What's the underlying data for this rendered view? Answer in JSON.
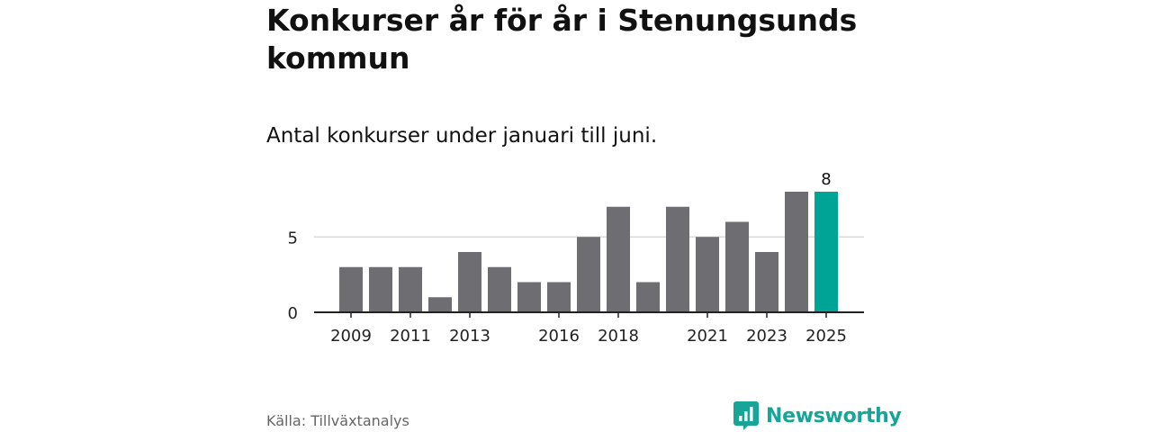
{
  "title": "Konkurser år för år i Stenungsunds kommun",
  "subtitle": "Antal konkurser under januari till juni.",
  "source": "Källa: Tillväxtanalys",
  "brand": "Newsworthy",
  "colors": {
    "bar": "#6e6d72",
    "highlight": "#00a497",
    "brand": "#16a598",
    "grid": "#d9d9d9",
    "axis": "#222222"
  },
  "chart_data": {
    "type": "bar",
    "categories": [
      "2009",
      "2010",
      "2011",
      "2012",
      "2013",
      "2014",
      "2015",
      "2016",
      "2017",
      "2018",
      "2019",
      "2020",
      "2021",
      "2022",
      "2023",
      "2024",
      "2025"
    ],
    "values": [
      3,
      3,
      3,
      1,
      4,
      3,
      2,
      2,
      5,
      7,
      2,
      7,
      5,
      6,
      4,
      8,
      8
    ],
    "x_tick_labels": [
      "2009",
      "2011",
      "2013",
      "2016",
      "2018",
      "2021",
      "2023",
      "2025"
    ],
    "y_ticks": [
      0,
      5
    ],
    "ylim": [
      0,
      8
    ],
    "highlight_category": "2025",
    "data_labels": [
      {
        "category": "2025",
        "value": "8"
      }
    ],
    "grid": true
  }
}
